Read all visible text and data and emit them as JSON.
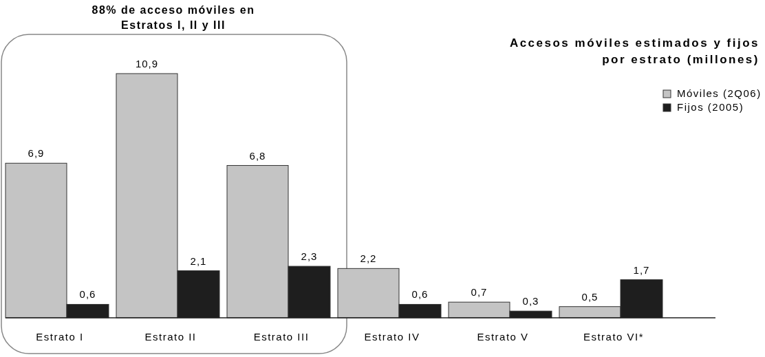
{
  "chart_data": {
    "type": "bar",
    "title": "Accesos móviles estimados y fijos por estrato (millones)",
    "categories": [
      "Estrato I",
      "Estrato II",
      "Estrato III",
      "Estrato IV",
      "Estrato V",
      "Estrato VI*"
    ],
    "series": [
      {
        "name": "Móviles (2Q06)",
        "color": "#c4c4c4",
        "values": [
          6.9,
          10.9,
          6.8,
          2.2,
          0.7,
          0.5
        ],
        "value_labels": [
          "6,9",
          "10,9",
          "6,8",
          "2,2",
          "0,7",
          "0,5"
        ]
      },
      {
        "name": "Fijos (2005)",
        "color": "#1e1e1e",
        "values": [
          0.6,
          2.1,
          2.3,
          0.6,
          0.3,
          1.7
        ],
        "value_labels": [
          "0,6",
          "2,1",
          "2,3",
          "0,6",
          "0,3",
          "1,7"
        ]
      }
    ],
    "annotations": [
      "88% de acceso móviles en Estratos I, II y III"
    ],
    "legend": "top right"
  }
}
